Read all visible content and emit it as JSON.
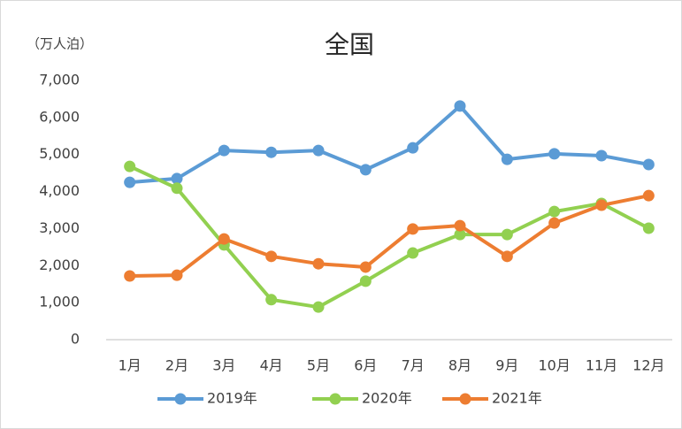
{
  "chart_data": {
    "type": "line",
    "title": "全国",
    "y_label": "（万人泊）",
    "categories": [
      "1月",
      "2月",
      "3月",
      "4月",
      "5月",
      "6月",
      "7月",
      "8月",
      "9月",
      "10月",
      "11月",
      "12月"
    ],
    "series": [
      {
        "name": "2019年",
        "color": "#5b9bd5",
        "values": [
          4250,
          4350,
          5110,
          5060,
          5110,
          4590,
          5180,
          6310,
          4870,
          5020,
          4970,
          4730
        ]
      },
      {
        "name": "2020年",
        "color": "#92d050",
        "values": [
          4680,
          4090,
          2560,
          1080,
          880,
          1580,
          2340,
          2840,
          2840,
          3460,
          3680,
          3010
        ]
      },
      {
        "name": "2021年",
        "color": "#ed7d31",
        "values": [
          1720,
          1740,
          2720,
          2250,
          2050,
          1960,
          2990,
          3080,
          2250,
          3150,
          3630,
          3890
        ]
      }
    ],
    "ylim": [
      0,
      7000
    ],
    "yticks": [
      0,
      {
        "value": 1000,
        "label": "1,000"
      },
      {
        "value": 2000,
        "label": "2,000"
      },
      {
        "value": 3000,
        "label": "3,000"
      },
      {
        "value": 4000,
        "label": "4,000"
      },
      {
        "value": 5000,
        "label": "5,000"
      },
      {
        "value": 6000,
        "label": "6,000"
      },
      {
        "value": 7000,
        "label": "7,000"
      }
    ],
    "grid": false,
    "legend": "bottom"
  }
}
